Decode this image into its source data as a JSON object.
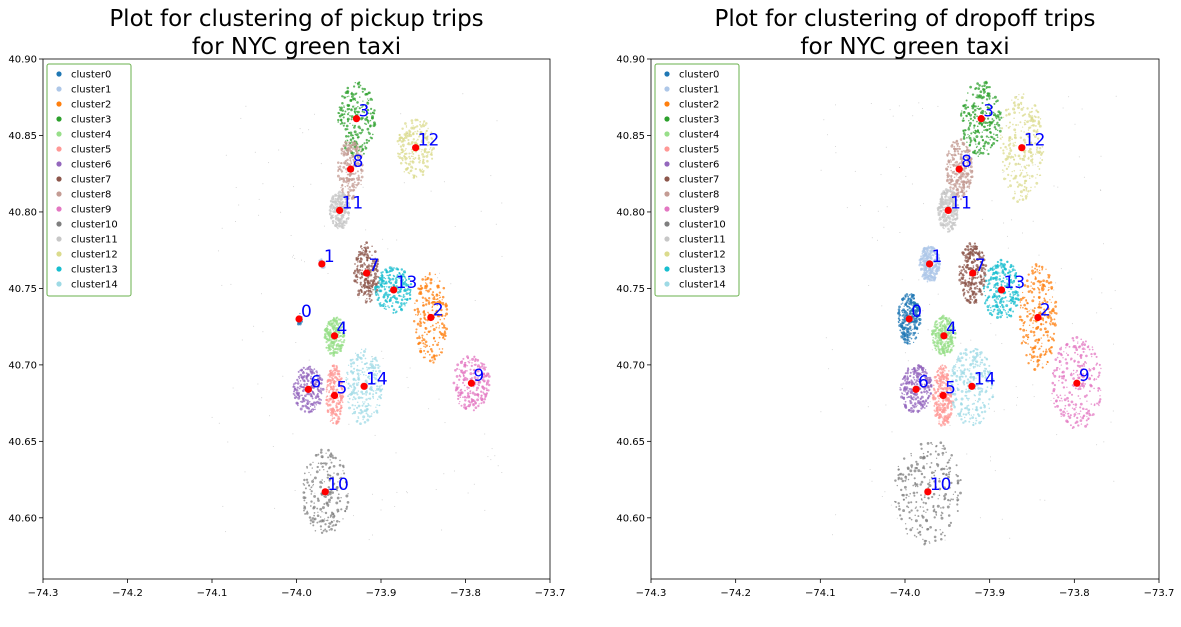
{
  "chart_data": [
    {
      "type": "scatter",
      "title_lines": [
        "Plot for clustering of pickup trips",
        "for NYC green taxi"
      ],
      "xlim": [
        -74.3,
        -73.7
      ],
      "ylim": [
        40.56,
        40.9
      ],
      "x_ticks": [
        -74.3,
        -74.2,
        -74.1,
        -74.0,
        -73.9,
        -73.8,
        -73.7
      ],
      "y_ticks": [
        40.6,
        40.65,
        40.7,
        40.75,
        40.8,
        40.85,
        40.9
      ],
      "x_tick_labels": [
        "−74.3",
        "−74.2",
        "−74.1",
        "−74.0",
        "−73.9",
        "−73.8",
        "−73.7"
      ],
      "y_tick_labels": [
        "40.60",
        "40.65",
        "40.70",
        "40.75",
        "40.80",
        "40.85",
        "40.90"
      ],
      "grid": false,
      "legend_position": "top-left",
      "legend": [
        "cluster0",
        "cluster1",
        "cluster2",
        "cluster3",
        "cluster4",
        "cluster5",
        "cluster6",
        "cluster7",
        "cluster8",
        "cluster9",
        "cluster10",
        "cluster11",
        "cluster12",
        "cluster13",
        "cluster14"
      ],
      "centers": [
        {
          "label": "0",
          "x": -73.997,
          "y": 40.73
        },
        {
          "label": "1",
          "x": -73.97,
          "y": 40.766
        },
        {
          "label": "2",
          "x": -73.841,
          "y": 40.731
        },
        {
          "label": "3",
          "x": -73.929,
          "y": 40.861
        },
        {
          "label": "4",
          "x": -73.955,
          "y": 40.719
        },
        {
          "label": "5",
          "x": -73.955,
          "y": 40.68
        },
        {
          "label": "6",
          "x": -73.986,
          "y": 40.684
        },
        {
          "label": "7",
          "x": -73.917,
          "y": 40.76
        },
        {
          "label": "8",
          "x": -73.936,
          "y": 40.828
        },
        {
          "label": "9",
          "x": -73.793,
          "y": 40.688
        },
        {
          "label": "10",
          "x": -73.966,
          "y": 40.617
        },
        {
          "label": "11",
          "x": -73.949,
          "y": 40.801
        },
        {
          "label": "12",
          "x": -73.859,
          "y": 40.842
        },
        {
          "label": "13",
          "x": -73.885,
          "y": 40.749
        },
        {
          "label": "14",
          "x": -73.92,
          "y": 40.686
        }
      ]
    },
    {
      "type": "scatter",
      "title_lines": [
        "Plot for clustering of dropoff trips",
        "for NYC green taxi"
      ],
      "xlim": [
        -74.3,
        -73.7
      ],
      "ylim": [
        40.56,
        40.9
      ],
      "x_ticks": [
        -74.3,
        -74.2,
        -74.1,
        -74.0,
        -73.9,
        -73.8,
        -73.7
      ],
      "y_ticks": [
        40.6,
        40.65,
        40.7,
        40.75,
        40.8,
        40.85,
        40.9
      ],
      "x_tick_labels": [
        "−74.3",
        "−74.2",
        "−74.1",
        "−74.0",
        "−73.9",
        "−73.8",
        "−73.7"
      ],
      "y_tick_labels": [
        "40.60",
        "40.65",
        "40.70",
        "40.75",
        "40.80",
        "40.85",
        "40.90"
      ],
      "grid": false,
      "legend_position": "top-left",
      "legend": [
        "cluster0",
        "cluster1",
        "cluster2",
        "cluster3",
        "cluster4",
        "cluster5",
        "cluster6",
        "cluster7",
        "cluster8",
        "cluster9",
        "cluster10",
        "cluster11",
        "cluster12",
        "cluster13",
        "cluster14"
      ],
      "centers": [
        {
          "label": "0",
          "x": -73.995,
          "y": 40.73
        },
        {
          "label": "1",
          "x": -73.971,
          "y": 40.766
        },
        {
          "label": "2",
          "x": -73.843,
          "y": 40.731
        },
        {
          "label": "3",
          "x": -73.91,
          "y": 40.861
        },
        {
          "label": "4",
          "x": -73.954,
          "y": 40.719
        },
        {
          "label": "5",
          "x": -73.955,
          "y": 40.68
        },
        {
          "label": "6",
          "x": -73.987,
          "y": 40.684
        },
        {
          "label": "7",
          "x": -73.92,
          "y": 40.76
        },
        {
          "label": "8",
          "x": -73.936,
          "y": 40.828
        },
        {
          "label": "9",
          "x": -73.797,
          "y": 40.688
        },
        {
          "label": "10",
          "x": -73.973,
          "y": 40.617
        },
        {
          "label": "11",
          "x": -73.949,
          "y": 40.801
        },
        {
          "label": "12",
          "x": -73.862,
          "y": 40.842
        },
        {
          "label": "13",
          "x": -73.886,
          "y": 40.749
        },
        {
          "label": "14",
          "x": -73.921,
          "y": 40.686
        }
      ]
    }
  ],
  "cluster_colors": [
    "#1f77b4",
    "#aec7e8",
    "#ff7f0e",
    "#2ca02c",
    "#98df8a",
    "#ff9896",
    "#9467bd",
    "#8c564b",
    "#c49c94",
    "#e377c2",
    "#7f7f7f",
    "#c7c7c7",
    "#dbdb8d",
    "#17becf",
    "#9edae5"
  ],
  "center_color": "#ff0000",
  "center_label_color": "#0000ff"
}
